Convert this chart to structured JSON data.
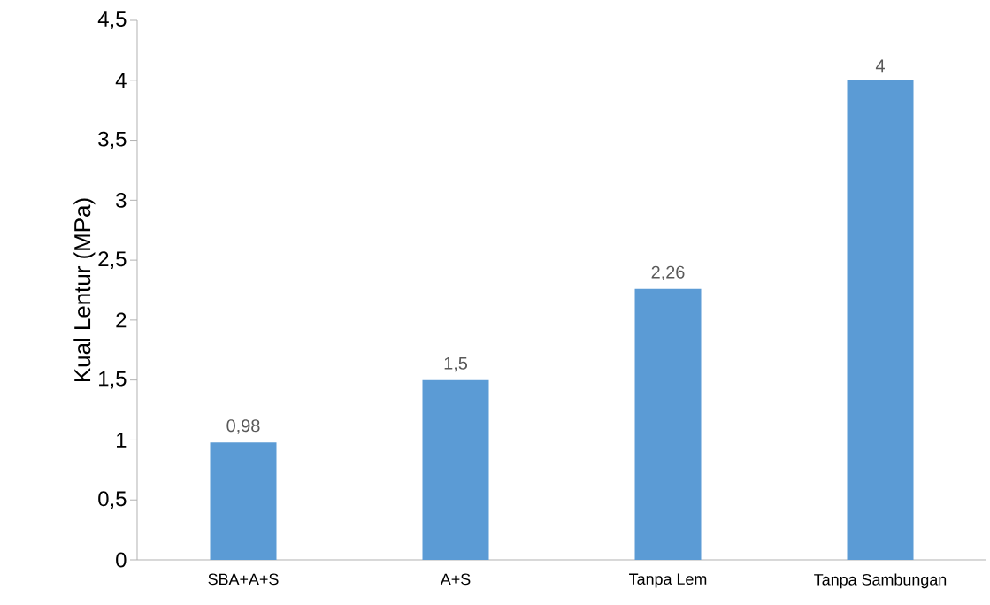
{
  "chart_data": {
    "type": "bar",
    "ylabel": "Kual Lentur (MPa)",
    "categories": [
      "SBA+A+S",
      "A+S",
      "Tanpa Lem",
      "Tanpa Sambungan"
    ],
    "values": [
      0.98,
      1.5,
      2.26,
      4
    ],
    "value_labels": [
      "0,98",
      "1,5",
      "2,26",
      "4"
    ],
    "color": "#5b9bd5",
    "ylim": [
      0,
      4.5
    ],
    "yticks": [
      0,
      {
        "value": 0.5,
        "label": "0,5"
      },
      1,
      {
        "value": 1.5,
        "label": "1,5"
      },
      2,
      {
        "value": 2.5,
        "label": "2,5"
      },
      3,
      {
        "value": 3.5,
        "label": "3,5"
      },
      4,
      {
        "value": 4.5,
        "label": "4,5"
      }
    ]
  }
}
